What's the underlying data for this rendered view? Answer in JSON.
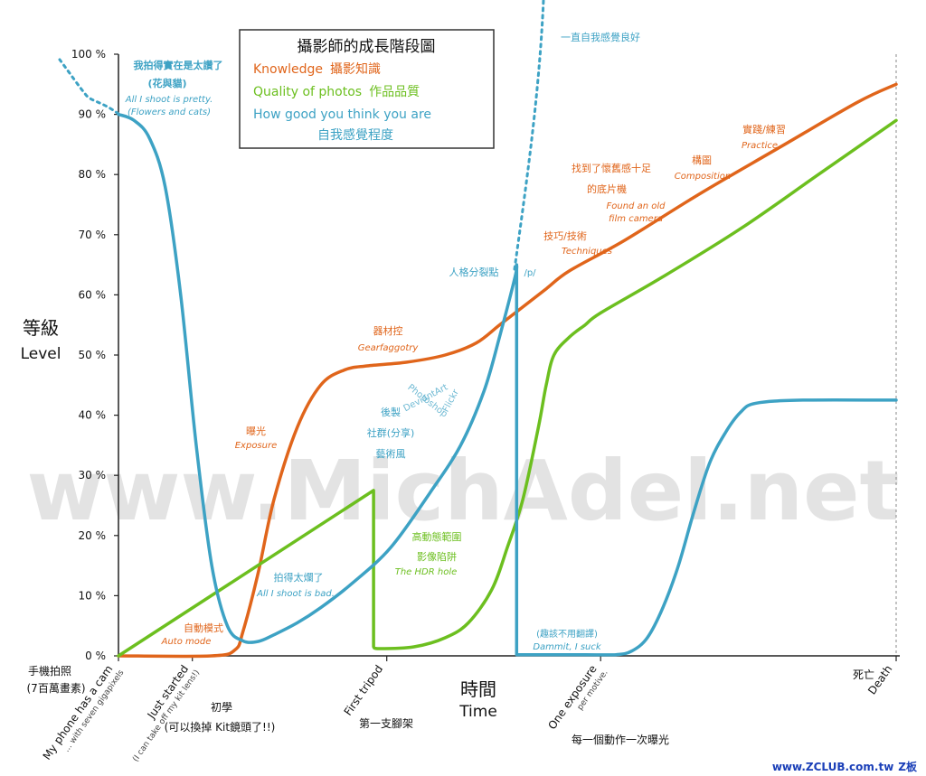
{
  "chart_data": {
    "type": "line",
    "title": "攝影師的成長階段圖",
    "legend": [
      {
        "label": "Knowledge",
        "label_cn": "攝影知識",
        "color": "#E0651B"
      },
      {
        "label": "Quality of photos",
        "label_cn": "作品品質",
        "color": "#6CBF1F"
      },
      {
        "label": "How good you think you are",
        "label_cn": "自我感覺程度",
        "color": "#3DA2C4"
      }
    ],
    "ylabel_cn": "等級",
    "ylabel": "Level",
    "xlabel_cn": "時間",
    "xlabel": "Time",
    "y_ticks": [
      "0 %",
      "10 %",
      "20 %",
      "30 %",
      "40 %",
      "50 %",
      "60 %",
      "70 %",
      "80 %",
      "90 %",
      "100 %"
    ],
    "ylim": [
      0,
      100
    ],
    "xlim": [
      0,
      100
    ],
    "x_ticks": [
      {
        "x": 0,
        "label": "My phone has a cam",
        "sub": "... with seven gigapixels",
        "cn": "手機拍照",
        "cn2": "(7百萬畫素)"
      },
      {
        "x": 9.5,
        "label": "Just started",
        "sub": "(I can take off my kit lens!)",
        "cn": "初學",
        "cn2": "(可以換掉 Kit鏡頭了!!)"
      },
      {
        "x": 34.5,
        "label": "First tripod",
        "sub": "",
        "cn": "第一支腳架",
        "cn2": ""
      },
      {
        "x": 62,
        "label": "One exposure",
        "sub": "per motive.",
        "cn": "每一個動作一次曝光",
        "cn2": ""
      },
      {
        "x": 100,
        "label": "Death",
        "sub": "",
        "cn": "死亡",
        "cn2": ""
      }
    ],
    "series": [
      {
        "name": "Knowledge",
        "color": "#E0651B",
        "x": [
          0,
          12,
          15,
          16,
          18,
          20,
          23,
          26,
          29,
          32,
          37,
          42,
          46,
          49,
          52,
          55,
          58,
          65,
          75,
          85,
          95,
          100
        ],
        "y": [
          0,
          0,
          1,
          4,
          14,
          26,
          38,
          45,
          47.5,
          48.2,
          48.8,
          50,
          52,
          55,
          58,
          61,
          64,
          69,
          77,
          84.5,
          92,
          95
        ]
      },
      {
        "name": "Quality of photos",
        "color": "#6CBF1F",
        "x": [
          0,
          32.8,
          32.8,
          33.5,
          38,
          42,
          45,
          48,
          50,
          52,
          54,
          55,
          56,
          58,
          60,
          62,
          70,
          80,
          90,
          100
        ],
        "y": [
          0,
          27.5,
          1.5,
          1.2,
          1.5,
          3,
          5.5,
          11,
          18,
          26,
          38,
          45,
          50,
          53,
          55,
          57,
          63,
          71,
          80,
          89
        ]
      },
      {
        "name": "How good you think you are",
        "color": "#3DA2C4",
        "x": [
          0,
          2,
          4,
          6,
          8,
          10,
          12,
          14,
          16,
          18,
          20,
          23,
          26,
          30,
          35,
          40,
          44,
          47,
          49,
          51,
          51.2,
          51.2,
          60,
          64,
          66,
          68,
          70,
          72,
          74,
          76,
          78,
          80,
          82,
          88,
          100
        ],
        "y": [
          90,
          89,
          86,
          78,
          60,
          35,
          15,
          5,
          2.5,
          2.4,
          3.5,
          5.5,
          8,
          12,
          18,
          27,
          35,
          44,
          53,
          63,
          65,
          0.2,
          0.2,
          0.2,
          0.8,
          3,
          8,
          15,
          24,
          32,
          37,
          40.5,
          42,
          42.5,
          42.5
        ]
      }
    ],
    "annotations": {
      "autosmode_cn": "自動模式",
      "autosmode_en": "Auto mode",
      "exposure_cn": "曝光",
      "exposure_en": "Exposure",
      "gear_cn": "器材控",
      "gear_en": "Gearfaggotry",
      "techniques_cn": "技巧/技術",
      "techniques_en": "Techniques",
      "oldcam_cn1": "找到了懷舊感十足",
      "oldcam_cn2": "的底片機",
      "oldcam_en1": "Found an old",
      "oldcam_en2": "film camera",
      "composition_cn": "構圖",
      "composition_en": "Composition",
      "practice_cn": "實踐/練習",
      "practice_en": "Practice",
      "pretty_cn1": "我拍得實在是太讚了",
      "pretty_cn2": "(花與貓)",
      "pretty_en1": "All I shoot is pretty.",
      "pretty_en2": "(Flowers and cats)",
      "bad_cn": "拍得太爛了",
      "bad_en": "All I shoot is bad.",
      "split_cn": "人格分裂點",
      "split_en": "/p/",
      "feelgood_cn": "一直自我感覺良好",
      "social_cn1": "後製",
      "social_cn2": "社群(分享)",
      "social_cn3": "藝術風",
      "deviantart": "DeviantArt",
      "photoshop": "Photoshop",
      "flickr": "Flickr",
      "hdr_cn1": "高動態範圍",
      "hdr_cn2": "影像陷阱",
      "hdr_en": "The HDR hole",
      "dammit_cn": "(趣該不用翻譯)",
      "dammit_en": "Dammit, I suck"
    }
  },
  "watermark": "www.MichAdel.net",
  "footer_site": "www.ZCLUB.com.tw",
  "footer_brand": "Z板"
}
